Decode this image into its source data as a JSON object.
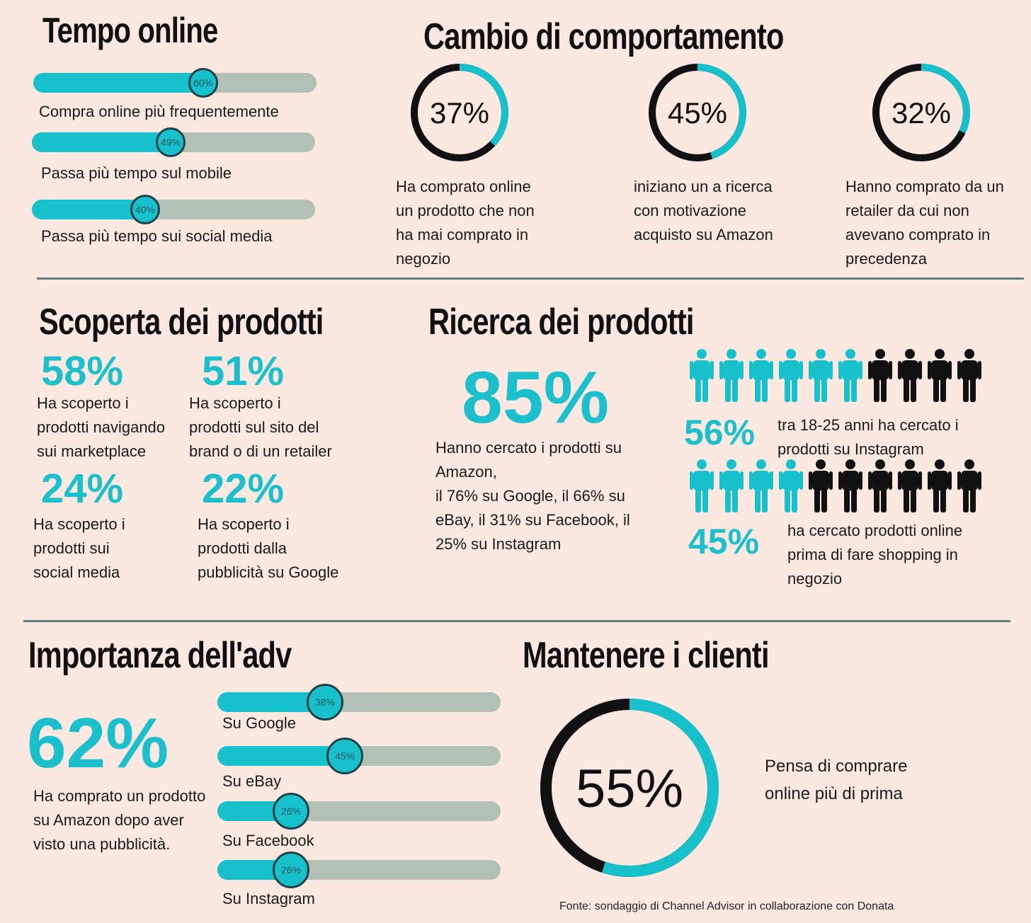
{
  "tempo_online": {
    "title": "Tempo online",
    "bars": [
      {
        "percent": 60,
        "label_pct": "60%",
        "caption": "Compra online più frequentemente"
      },
      {
        "percent": 49,
        "label_pct": "49%",
        "caption": "Passa più tempo sul mobile"
      },
      {
        "percent": 40,
        "label_pct": "40%",
        "caption": "Passa più tempo sui social media"
      }
    ]
  },
  "cambio": {
    "title": "Cambio di comportamento",
    "rings": [
      {
        "value": 37,
        "label": "37%",
        "lines": [
          "Ha comprato online",
          "un prodotto che non",
          "ha mai comprato in",
          "negozio"
        ]
      },
      {
        "value": 45,
        "label": "45%",
        "lines": [
          "iniziano un a ricerca",
          "con motivazione",
          "acquisto su Amazon"
        ]
      },
      {
        "value": 32,
        "label": "32%",
        "lines": [
          "Hanno comprato da un",
          "retailer da cui non",
          "avevano comprato in",
          "precedenza"
        ]
      }
    ]
  },
  "scoperta": {
    "title": "Scoperta dei prodotti",
    "stats": [
      {
        "value": "58%",
        "lines": [
          "Ha scoperto i",
          "prodotti navigando",
          "sui marketplace"
        ]
      },
      {
        "value": "51%",
        "lines": [
          "Ha scoperto i",
          "prodotti sul sito del",
          "brand o di un retailer"
        ]
      },
      {
        "value": "24%",
        "lines": [
          "Ha scoperto i",
          "prodotti sui",
          "social media"
        ]
      },
      {
        "value": "22%",
        "lines": [
          "Ha scoperto i",
          "prodotti dalla",
          "pubblicità su Google"
        ]
      }
    ]
  },
  "ricerca": {
    "title": "Ricerca dei prodotti",
    "big_value": "85%",
    "lines": [
      "Hanno cercato i prodotti su",
      "Amazon,",
      "il 76% su Google, il 66% su",
      "eBay, il 31% su Facebook, il",
      "25% su Instagram"
    ],
    "pictograms": [
      {
        "value": "56%",
        "teal_count": 6,
        "total": 10,
        "lines": [
          "tra 18-25 anni ha cercato i",
          "prodotti su Instagram"
        ]
      },
      {
        "value": "45%",
        "teal_count": 4,
        "total": 10,
        "lines": [
          "ha cercato prodotti online",
          "prima di fare shopping in",
          "negozio"
        ]
      }
    ]
  },
  "adv": {
    "title": "Importanza dell'adv",
    "big_value": "62%",
    "lines": [
      "Ha comprato un prodotto",
      "su Amazon  dopo aver",
      "visto una pubblicità."
    ],
    "bars": [
      {
        "percent": 38,
        "label_pct": "38%",
        "caption": "Su Google"
      },
      {
        "percent": 45,
        "label_pct": "45%",
        "caption": "Su eBay"
      },
      {
        "percent": 26,
        "label_pct": "26%",
        "caption": "Su Facebook"
      },
      {
        "percent": 26,
        "label_pct": "26%",
        "caption": "Su Instagram"
      }
    ]
  },
  "clienti": {
    "title": "Mantenere i clienti",
    "value": 55,
    "label": "55%",
    "lines": [
      "Pensa di comprare",
      "online più di prima"
    ]
  },
  "source": "Fonte: sondaggio di Channel Advisor in collaborazione con Donata",
  "colors": {
    "teal": "#16c1cc",
    "dark": "#111111",
    "track": "#b3c0b6",
    "background": "#fbe9e1",
    "divider": "#5f7f83"
  },
  "chart_data": [
    {
      "type": "bar",
      "title": "Tempo online",
      "categories": [
        "Compra online più frequentemente",
        "Passa più tempo sul mobile",
        "Passa più tempo sui social media"
      ],
      "values": [
        60,
        49,
        40
      ],
      "ylim": [
        0,
        100
      ]
    },
    {
      "type": "pie",
      "title": "Cambio di comportamento",
      "categories": [
        "Ha comprato online un prodotto che non ha mai comprato in negozio",
        "iniziano un a ricerca con motivazione acquisto su Amazon",
        "Hanno comprato da un retailer da cui non avevano comprato in precedenza"
      ],
      "values": [
        37,
        45,
        32
      ]
    },
    {
      "type": "bar",
      "title": "Importanza dell'adv",
      "categories": [
        "Su Google",
        "Su eBay",
        "Su Facebook",
        "Su Instagram"
      ],
      "values": [
        38,
        45,
        26,
        26
      ],
      "ylim": [
        0,
        100
      ]
    },
    {
      "type": "pie",
      "title": "Mantenere i clienti",
      "categories": [
        "Pensa di comprare online più di prima"
      ],
      "values": [
        55
      ]
    }
  ]
}
